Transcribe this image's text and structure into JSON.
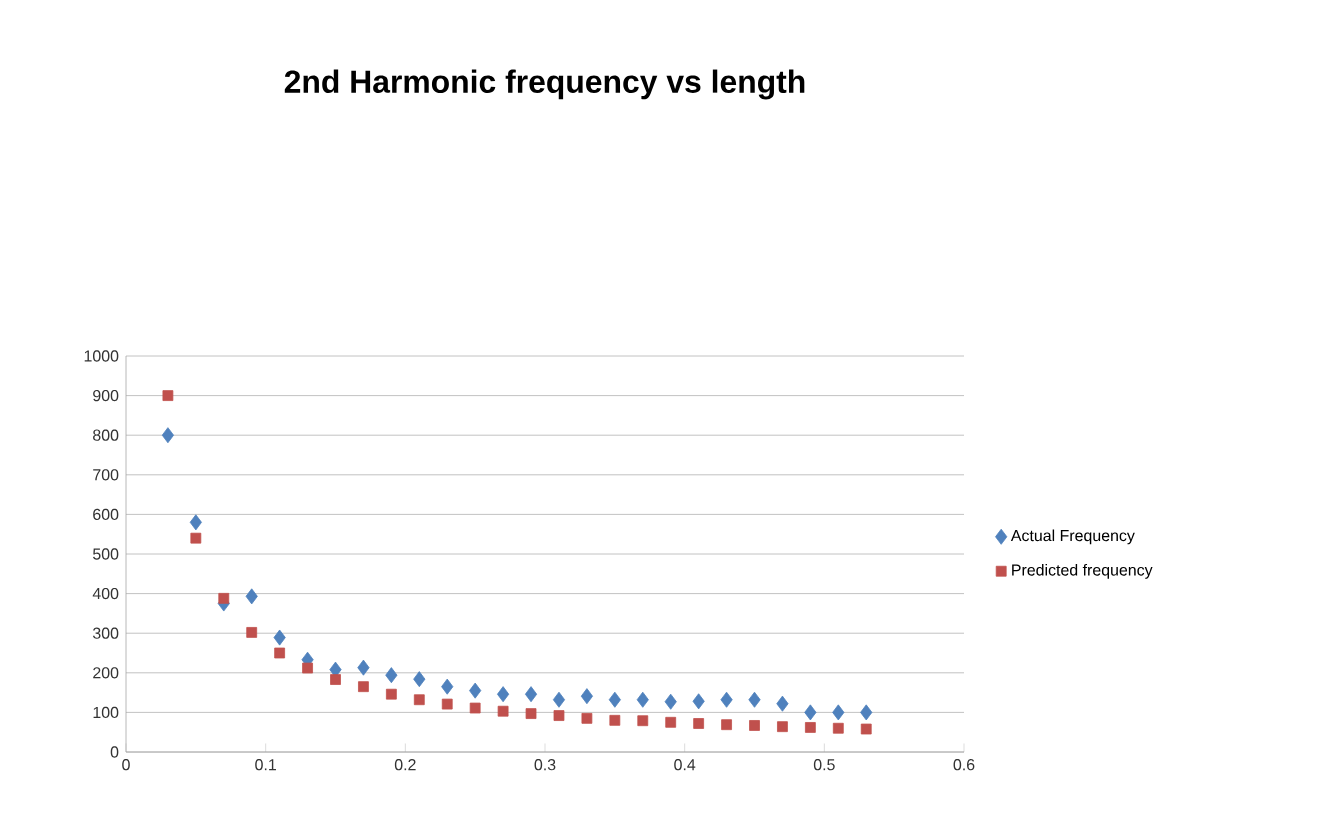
{
  "chart_data": {
    "type": "scatter",
    "title": "2nd Harmonic frequency vs length",
    "x": [
      0.03,
      0.05,
      0.07,
      0.09,
      0.11,
      0.13,
      0.15,
      0.17,
      0.19,
      0.21,
      0.23,
      0.25,
      0.27,
      0.29,
      0.31,
      0.33,
      0.35,
      0.37,
      0.39,
      0.41,
      0.43,
      0.45,
      0.47,
      0.49,
      0.51,
      0.53
    ],
    "series": [
      {
        "name": "Actual Frequency",
        "color": "#4f81bd",
        "marker": "diamond",
        "values": [
          800,
          580,
          375,
          393,
          289,
          233,
          208,
          213,
          194,
          184,
          165,
          155,
          146,
          146,
          132,
          141,
          132,
          132,
          127,
          128,
          132,
          132,
          122,
          100,
          100,
          100
        ]
      },
      {
        "name": "Predicted frequency",
        "color": "#c0504d",
        "marker": "square",
        "values": [
          900,
          540,
          388,
          302,
          250,
          212,
          183,
          165,
          146,
          132,
          121,
          111,
          103,
          97,
          92,
          85,
          80,
          79,
          75,
          72,
          69,
          67,
          64,
          62,
          60,
          58
        ]
      }
    ],
    "xlim": [
      0,
      0.6
    ],
    "xticks": [
      0,
      0.1,
      0.2,
      0.3,
      0.4,
      0.5,
      0.6
    ],
    "ylim": [
      0,
      1000
    ],
    "yticks": [
      0,
      100,
      200,
      300,
      400,
      500,
      600,
      700,
      800,
      900,
      1000
    ],
    "grid": "y",
    "legend": "right"
  }
}
